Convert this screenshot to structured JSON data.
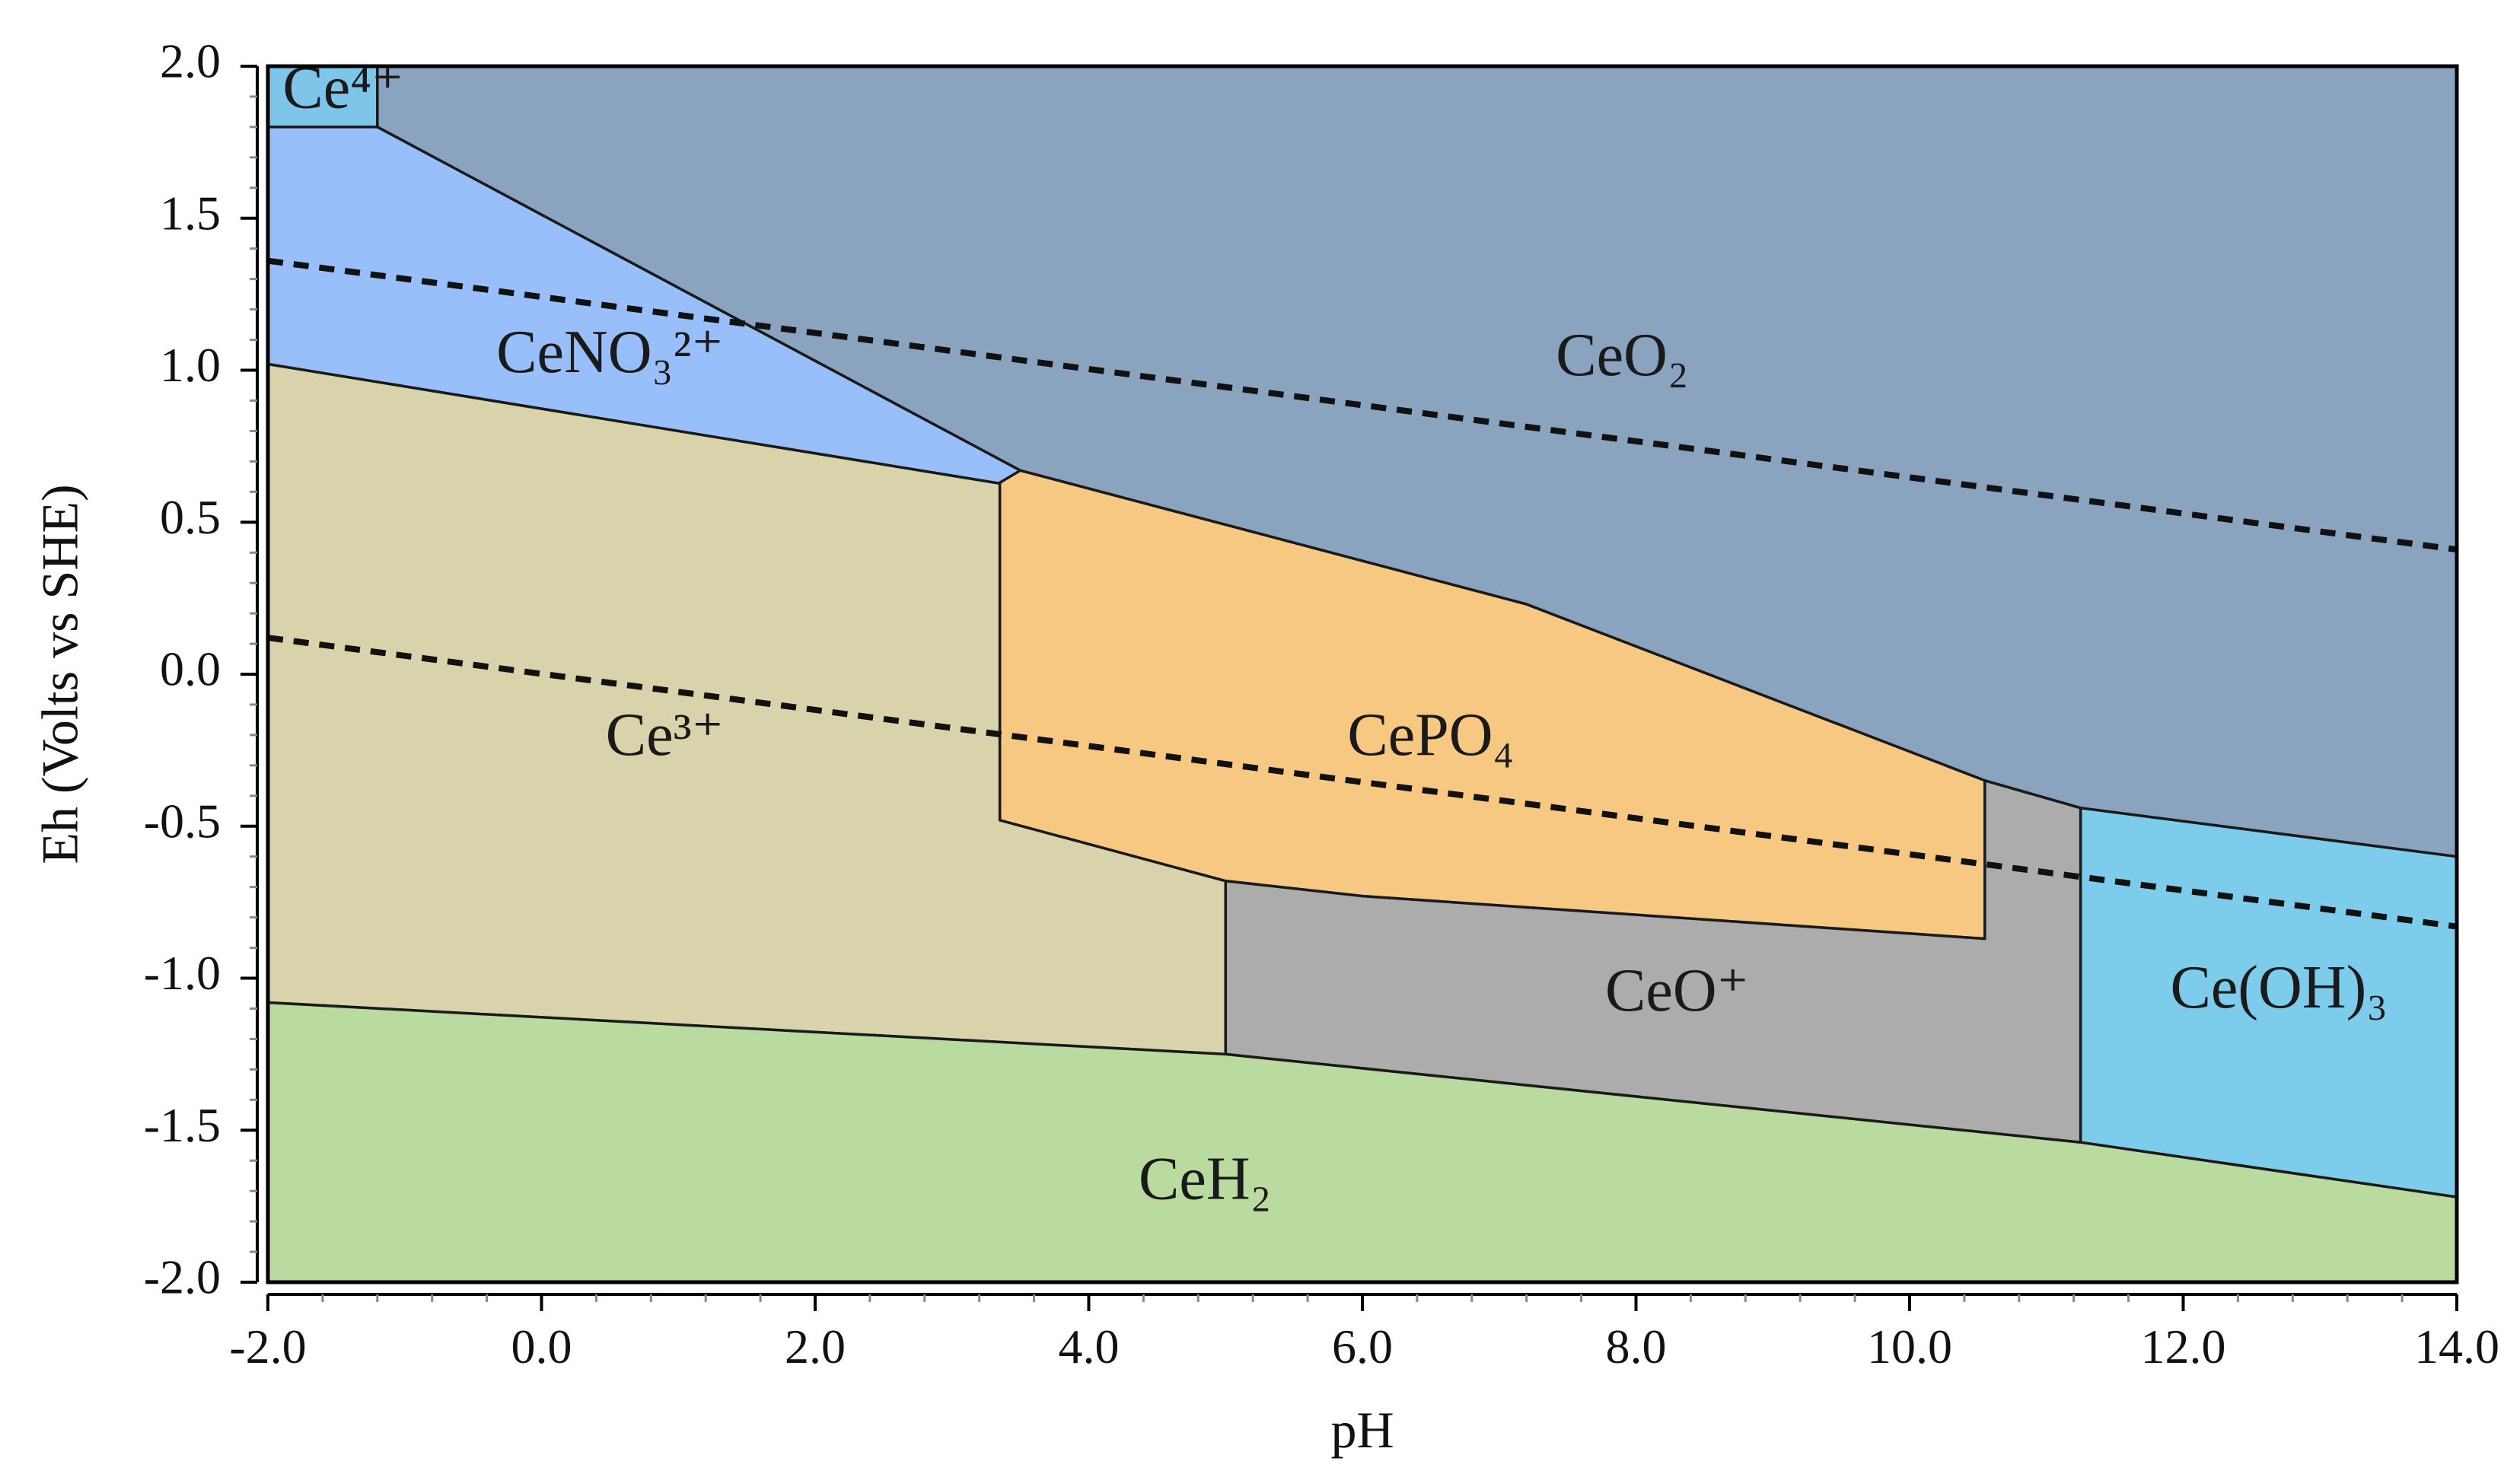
{
  "chart_data": {
    "type": "area",
    "title": "",
    "xlabel": "pH",
    "ylabel": "Eh (Volts vs SHE)",
    "xlim": [
      -2.0,
      14.0
    ],
    "ylim": [
      -2.0,
      2.0
    ],
    "x_ticks": [
      "-2.0",
      "0.0",
      "2.0",
      "4.0",
      "6.0",
      "8.0",
      "10.0",
      "12.0",
      "14.0"
    ],
    "y_ticks": [
      "2.0",
      "1.5",
      "1.0",
      "0.5",
      "0.0",
      "-0.5",
      "-1.0",
      "-1.5",
      "-2.0"
    ],
    "grid": false,
    "regions": [
      {
        "name": "CeO2",
        "label": "CeO₂",
        "color": "#8aa3bf",
        "points": [
          [
            -1.2,
            2.0
          ],
          [
            14.0,
            2.0
          ],
          [
            14.0,
            -0.6
          ],
          [
            11.25,
            -0.44
          ],
          [
            10.55,
            -0.35
          ],
          [
            7.2,
            0.23
          ],
          [
            3.5,
            0.67
          ],
          [
            -1.2,
            1.8
          ]
        ],
        "label_at": [
          7.9,
          1.03
        ]
      },
      {
        "name": "Ce4+",
        "label": "Ce⁴⁺",
        "color": "#7ec5ea",
        "points": [
          [
            -2.0,
            2.0
          ],
          [
            -1.2,
            2.0
          ],
          [
            -1.2,
            1.8
          ],
          [
            -2.0,
            1.8
          ]
        ],
        "label_at": [
          -1.45,
          1.91
        ]
      },
      {
        "name": "CeNO3 2+",
        "label": "CeNO₃²⁺",
        "color": "#98bffa",
        "points": [
          [
            -2.0,
            1.8
          ],
          [
            -1.2,
            1.8
          ],
          [
            3.5,
            0.67
          ],
          [
            3.45,
            0.62
          ],
          [
            -2.0,
            1.02
          ]
        ],
        "label_at": [
          0.5,
          1.04
        ]
      },
      {
        "name": "Ce3+",
        "label": "Ce³⁺",
        "color": "#d8d3ab",
        "points": [
          [
            -2.0,
            1.02
          ],
          [
            3.45,
            0.62
          ],
          [
            3.35,
            0.63
          ],
          [
            3.35,
            -0.48
          ],
          [
            5.0,
            -0.68
          ],
          [
            5.0,
            -1.25
          ],
          [
            -2.0,
            -1.08
          ]
        ],
        "label_at": [
          0.9,
          -0.22
        ]
      },
      {
        "name": "CePO4",
        "label": "CePO₄",
        "color": "#f6c882",
        "points": [
          [
            3.35,
            0.63
          ],
          [
            3.5,
            0.67
          ],
          [
            7.2,
            0.23
          ],
          [
            10.55,
            -0.35
          ],
          [
            10.55,
            -0.87
          ],
          [
            6.0,
            -0.73
          ],
          [
            5.0,
            -0.68
          ],
          [
            3.35,
            -0.48
          ]
        ],
        "label_at": [
          6.5,
          -0.22
        ]
      },
      {
        "name": "CeO+",
        "label": "CeO⁺",
        "color": "#acacac",
        "points": [
          [
            5.0,
            -0.68
          ],
          [
            6.0,
            -0.73
          ],
          [
            10.55,
            -0.87
          ],
          [
            10.55,
            -0.35
          ],
          [
            11.25,
            -0.44
          ],
          [
            11.25,
            -1.54
          ],
          [
            5.0,
            -1.25
          ]
        ],
        "label_at": [
          8.3,
          -1.06
        ]
      },
      {
        "name": "Ce(OH)3",
        "label": "Ce(OH)₃",
        "color": "#7ecceb",
        "points": [
          [
            11.25,
            -0.44
          ],
          [
            14.0,
            -0.6
          ],
          [
            14.0,
            -1.72
          ],
          [
            11.25,
            -1.54
          ]
        ],
        "label_at": [
          12.7,
          -1.05
        ]
      },
      {
        "name": "CeH2",
        "label": "CeH₂",
        "color": "#badb9f",
        "points": [
          [
            -2.0,
            -1.08
          ],
          [
            5.0,
            -1.25
          ],
          [
            11.25,
            -1.54
          ],
          [
            14.0,
            -1.72
          ],
          [
            14.0,
            -2.0
          ],
          [
            -2.0,
            -2.0
          ]
        ],
        "label_at": [
          4.85,
          -1.68
        ]
      }
    ],
    "dashed_lines": [
      {
        "name": "water-upper-limit",
        "points": [
          [
            -2.0,
            1.36
          ],
          [
            14.0,
            0.41
          ]
        ]
      },
      {
        "name": "water-lower-limit",
        "points": [
          [
            -2.0,
            0.12
          ],
          [
            14.0,
            -0.83
          ]
        ]
      }
    ],
    "colors": {
      "line": "#1a1a1a",
      "frame": "#000000",
      "minor_tick": "#888888"
    }
  }
}
